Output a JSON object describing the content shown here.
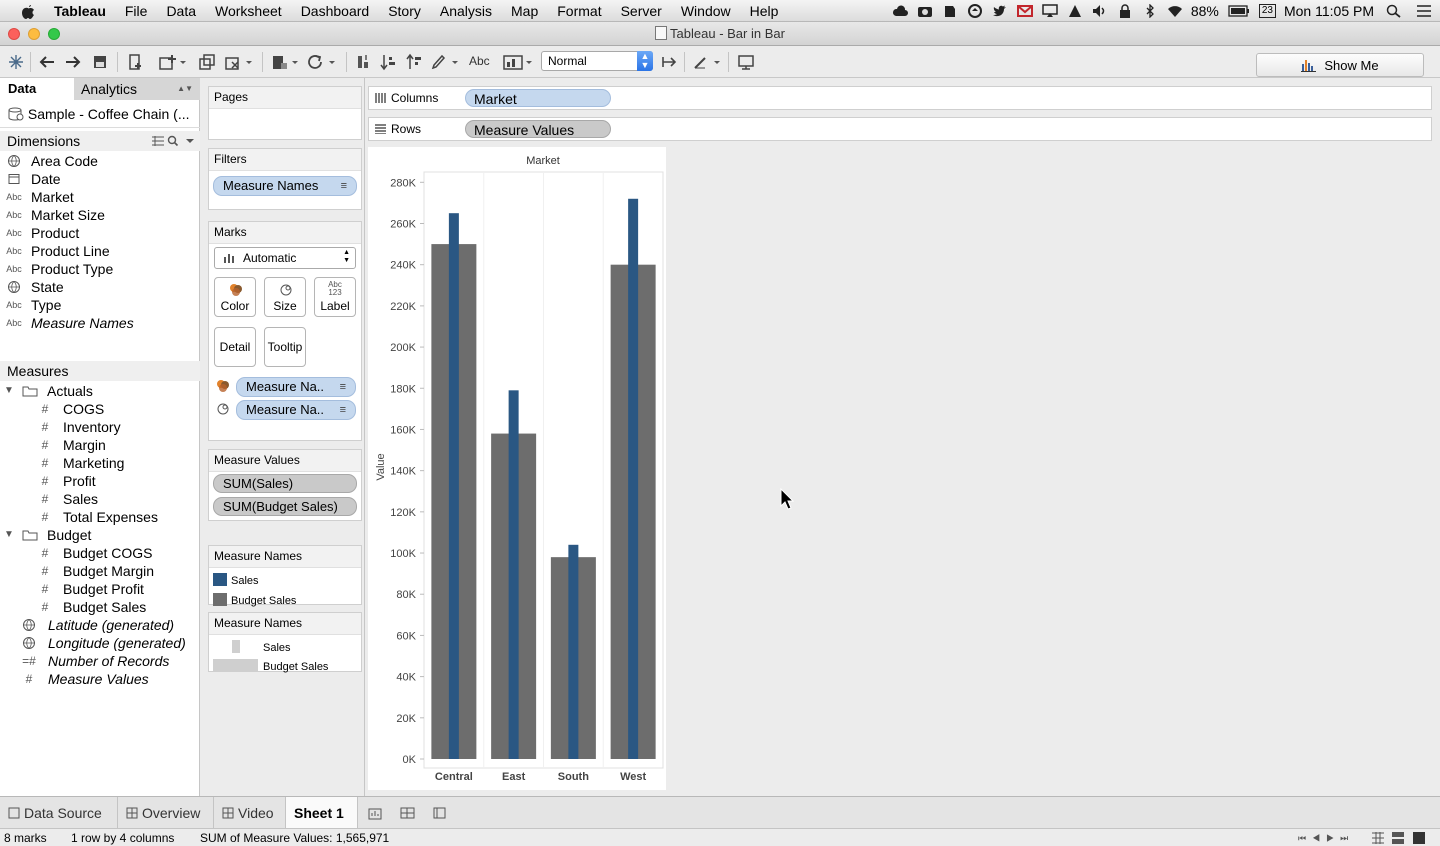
{
  "menubar": {
    "app": "Tableau",
    "items": [
      "File",
      "Data",
      "Worksheet",
      "Dashboard",
      "Story",
      "Analysis",
      "Map",
      "Format",
      "Server",
      "Window",
      "Help"
    ],
    "battery": "88%",
    "calendar_day": "23",
    "clock": "Mon 11:05 PM"
  },
  "window": {
    "title": "Tableau - Bar in Bar"
  },
  "toolbar": {
    "view_select": "Normal",
    "show_me": "Show Me",
    "abc": "Abc"
  },
  "left_pane": {
    "tab_data": "Data",
    "tab_analytics": "Analytics",
    "datasource": "Sample - Coffee Chain (...",
    "dimensions_header": "Dimensions",
    "dimensions": [
      {
        "icon": "globe",
        "label": "Area Code"
      },
      {
        "icon": "calendar",
        "label": "Date"
      },
      {
        "icon": "abc",
        "label": "Market"
      },
      {
        "icon": "abc",
        "label": "Market Size"
      },
      {
        "icon": "abc",
        "label": "Product"
      },
      {
        "icon": "abc",
        "label": "Product Line"
      },
      {
        "icon": "abc",
        "label": "Product Type"
      },
      {
        "icon": "globe",
        "label": "State"
      },
      {
        "icon": "abc",
        "label": "Type"
      },
      {
        "icon": "abc",
        "label": "Measure Names"
      }
    ],
    "measures_header": "Measures",
    "folders": [
      "Actuals",
      "Budget"
    ],
    "actuals": [
      "COGS",
      "Inventory",
      "Margin",
      "Marketing",
      "Profit",
      "Sales",
      "Total Expenses"
    ],
    "budget": [
      "Budget COGS",
      "Budget Margin",
      "Budget Profit",
      "Budget Sales"
    ],
    "generated": [
      "Latitude (generated)",
      "Longitude (generated)",
      "Number of Records",
      "Measure Values"
    ],
    "abc_icon": "Abc",
    "hash_icon": "#"
  },
  "cards": {
    "pages": "Pages",
    "filters": "Filters",
    "filter_pill": "Measure Names",
    "marks": "Marks",
    "mark_type": "Automatic",
    "color": "Color",
    "size": "Size",
    "label": "Label",
    "label_icon_top": "Abc",
    "label_icon_bottom": "123",
    "detail": "Detail",
    "tooltip": "Tooltip",
    "color_pill": "Measure Na..",
    "size_pill": "Measure Na..",
    "measure_values": "Measure Values",
    "mv_pills": [
      "SUM(Sales)",
      "SUM(Budget Sales)"
    ],
    "color_legend_title": "Measure Names",
    "color_legend": [
      "Sales",
      "Budget Sales"
    ],
    "size_legend_title": "Measure Names",
    "size_legend": [
      "Sales",
      "Budget Sales"
    ]
  },
  "shelves": {
    "columns_label": "Columns",
    "columns_pill": "Market",
    "rows_label": "Rows",
    "rows_pill": "Measure Values"
  },
  "colors": {
    "sales": "#2a5783",
    "budget": "#6d6d6d",
    "pill_blue": "#c5d8ee",
    "pill_green": "#c9c9c9"
  },
  "chart_data": {
    "type": "bar",
    "title": "Market",
    "ylabel": "Value",
    "categories": [
      "Central",
      "East",
      "South",
      "West"
    ],
    "series": [
      {
        "name": "Budget Sales",
        "values": [
          250000,
          158000,
          98000,
          240000
        ]
      },
      {
        "name": "Sales",
        "values": [
          265000,
          179000,
          104000,
          272000
        ]
      }
    ],
    "ylim": [
      0,
      285000
    ],
    "yticks": [
      0,
      20000,
      40000,
      60000,
      80000,
      100000,
      120000,
      140000,
      160000,
      180000,
      200000,
      220000,
      240000,
      260000,
      280000
    ],
    "ytick_labels": [
      "0K",
      "20K",
      "40K",
      "60K",
      "80K",
      "100K",
      "120K",
      "140K",
      "160K",
      "180K",
      "200K",
      "220K",
      "240K",
      "260K",
      "280K"
    ],
    "grid": false
  },
  "sheet_tabs": {
    "datasource": "Data Source",
    "overview": "Overview",
    "video": "Video",
    "sheet1": "Sheet 1"
  },
  "status": {
    "marks": "8 marks",
    "dims": "1 row by 4 columns",
    "sum": "SUM of Measure Values: 1,565,971"
  }
}
